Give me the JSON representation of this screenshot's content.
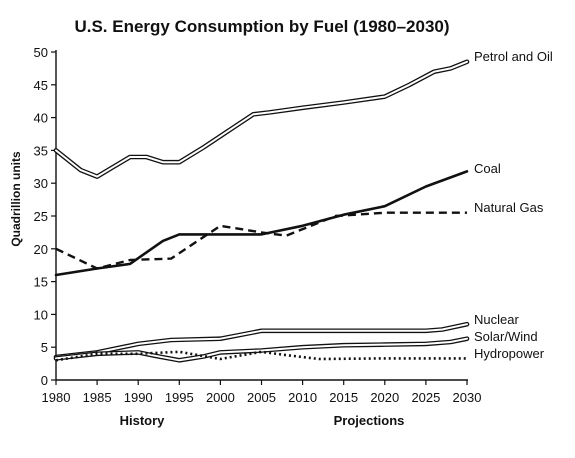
{
  "chart_data": {
    "type": "line",
    "title": "U.S. Energy Consumption by Fuel (1980–2030)",
    "ylabel": "Quadrillion units",
    "xlabel": "",
    "x_group_labels": [
      "History",
      "Projections"
    ],
    "xlim": [
      1980,
      2030
    ],
    "ylim": [
      0,
      50
    ],
    "x_ticks": [
      1980,
      1985,
      1990,
      1995,
      2000,
      2005,
      2010,
      2015,
      2020,
      2025,
      2030
    ],
    "y_ticks": [
      0,
      5,
      10,
      15,
      20,
      25,
      30,
      35,
      40,
      45,
      50
    ],
    "grid": false,
    "legend": "inline-right",
    "series": [
      {
        "name": "Petrol and Oil",
        "style": "double",
        "x": [
          1980,
          1983,
          1985,
          1987,
          1989,
          1991,
          1993,
          1995,
          1998,
          2001,
          2004,
          2006,
          2010,
          2015,
          2020,
          2023,
          2026,
          2028,
          2030
        ],
        "y": [
          35,
          32,
          31,
          32.5,
          34,
          34,
          33.2,
          33.2,
          35.5,
          38,
          40.5,
          40.8,
          41.5,
          42.3,
          43.2,
          45,
          47,
          47.5,
          48.5
        ]
      },
      {
        "name": "Coal",
        "style": "solid",
        "x": [
          1980,
          1985,
          1989,
          1993,
          1995,
          2000,
          2005,
          2010,
          2015,
          2020,
          2025,
          2030
        ],
        "y": [
          16,
          17,
          17.7,
          21.2,
          22.2,
          22.2,
          22.2,
          23.5,
          25.2,
          26.5,
          29.5,
          31.8
        ]
      },
      {
        "name": "Natural Gas",
        "style": "dashed",
        "x": [
          1980,
          1985,
          1989,
          1994,
          2000,
          2005,
          2008,
          2014,
          2020,
          2025,
          2030
        ],
        "y": [
          20,
          17,
          18.3,
          18.5,
          23.5,
          22.5,
          22,
          25,
          25.5,
          25.5,
          25.5
        ]
      },
      {
        "name": "Nuclear",
        "style": "double",
        "x": [
          1980,
          1985,
          1990,
          1994,
          2000,
          2005,
          2010,
          2015,
          2020,
          2025,
          2027,
          2030
        ],
        "y": [
          3.5,
          4.2,
          5.5,
          6.1,
          6.3,
          7.5,
          7.5,
          7.5,
          7.5,
          7.5,
          7.7,
          8.5
        ]
      },
      {
        "name": "Solar/Wind",
        "style": "double",
        "x": [
          1980,
          1985,
          1990,
          1992,
          1995,
          1998,
          2000,
          2005,
          2010,
          2015,
          2020,
          2025,
          2028,
          2030
        ],
        "y": [
          3.3,
          4,
          4.2,
          3.7,
          3,
          3.6,
          4.2,
          4.5,
          5,
          5.3,
          5.4,
          5.5,
          5.8,
          6.3
        ]
      },
      {
        "name": "Hydropower",
        "style": "dotted",
        "x": [
          1980,
          1985,
          1990,
          1995,
          2000,
          2005,
          2008,
          2012,
          2020,
          2025,
          2030
        ],
        "y": [
          3,
          4,
          4,
          4.3,
          3.2,
          4.3,
          3.8,
          3.2,
          3.3,
          3.3,
          3.3
        ]
      }
    ]
  }
}
